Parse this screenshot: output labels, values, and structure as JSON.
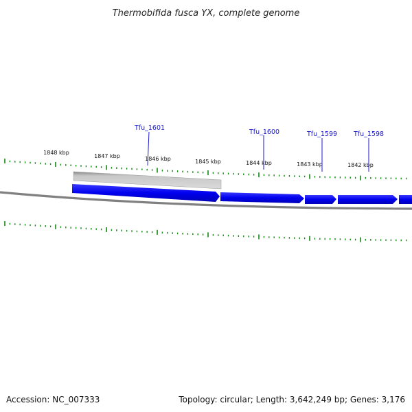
{
  "title": "Thermobifida fusca YX, complete genome",
  "footer": {
    "accession": "Accession: NC_007333",
    "summary": "Topology: circular; Length: 3,642,249 bp; Genes: 3,176"
  },
  "scale_labels": [
    "1848 kbp",
    "1847 kbp",
    "1846 kbp",
    "1845 kbp",
    "1844 kbp",
    "1843 kbp",
    "1842 kbp"
  ],
  "genes": [
    {
      "name": "Tfu_1601",
      "strand": "reverse",
      "track": "grey"
    },
    {
      "name": "Tfu_1600",
      "strand": "forward",
      "track": "blue"
    },
    {
      "name": "Tfu_1599",
      "strand": "forward",
      "track": "blue"
    },
    {
      "name": "Tfu_1598",
      "strand": "forward",
      "track": "blue"
    }
  ],
  "colors": {
    "forward_gene": "#0000ee",
    "reverse_gene": "#b8b8b8",
    "backbone": "#808080",
    "ticks": "#118811",
    "gene_label": "#1a1acc"
  }
}
